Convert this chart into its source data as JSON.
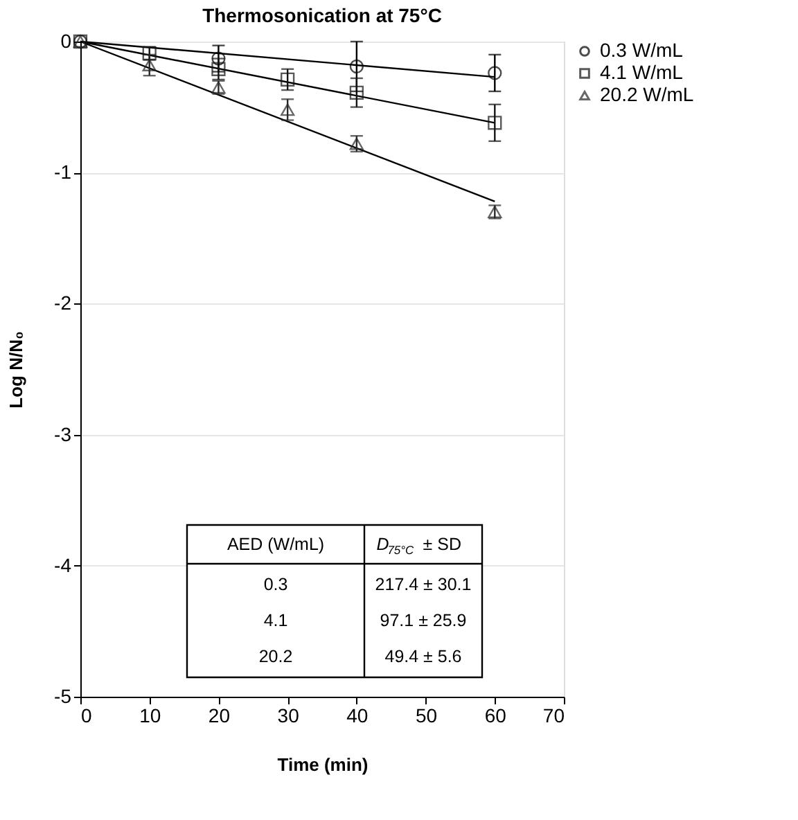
{
  "chart_data": {
    "type": "scatter",
    "title": "Thermosonication at 75°C",
    "xlabel": "Time (min)",
    "ylabel": "Log N/N₀",
    "xlim": [
      0,
      70
    ],
    "xticks": [
      0,
      10,
      20,
      30,
      40,
      50,
      60,
      70
    ],
    "ylim": [
      -5,
      0
    ],
    "yticks": [
      -5,
      -4,
      -3,
      -2,
      -1,
      0
    ],
    "grid": "y",
    "legend": "top right",
    "series": [
      {
        "name": "0.3 W/mL",
        "marker": "circle",
        "color": "#000000",
        "x": [
          0,
          20,
          40,
          60
        ],
        "values": [
          0,
          -0.13,
          -0.19,
          -0.24
        ],
        "errors": [
          null,
          0.1,
          0.19,
          0.14
        ]
      },
      {
        "name": "4.1 W/mL",
        "marker": "square",
        "color": "#141414",
        "x": [
          0,
          10,
          20,
          30,
          40,
          60
        ],
        "values": [
          0,
          -0.09,
          -0.21,
          -0.29,
          -0.39,
          -0.62
        ],
        "errors": [
          null,
          0.05,
          0.08,
          0.08,
          0.11,
          0.14
        ]
      },
      {
        "name": "20.2 W/mL",
        "marker": "triangle",
        "color": "#282828",
        "x": [
          0,
          10,
          20,
          30,
          40,
          60
        ],
        "values": [
          0,
          -0.18,
          -0.35,
          -0.52,
          -0.78,
          -1.3
        ],
        "errors": [
          null,
          0.08,
          0.05,
          0.08,
          0.06,
          0.05
        ]
      },
      {
        "type": "line",
        "color": "#000000",
        "x": [
          0,
          60
        ],
        "values": [
          0,
          -0.27
        ]
      },
      {
        "type": "line",
        "color": "#000000",
        "x": [
          0,
          60
        ],
        "values": [
          0,
          -0.62
        ]
      },
      {
        "type": "line",
        "color": "#000000",
        "x": [
          0,
          60
        ],
        "values": [
          0,
          -1.22
        ]
      }
    ],
    "annotations": [
      "AED (W/mL)",
      "D$_{75°C}$ ± SD",
      "0.3",
      "217.4 ± 30.1",
      "4.1",
      "97.1 ± 25.9",
      "20.2",
      "49.4 ± 5.6"
    ]
  }
}
